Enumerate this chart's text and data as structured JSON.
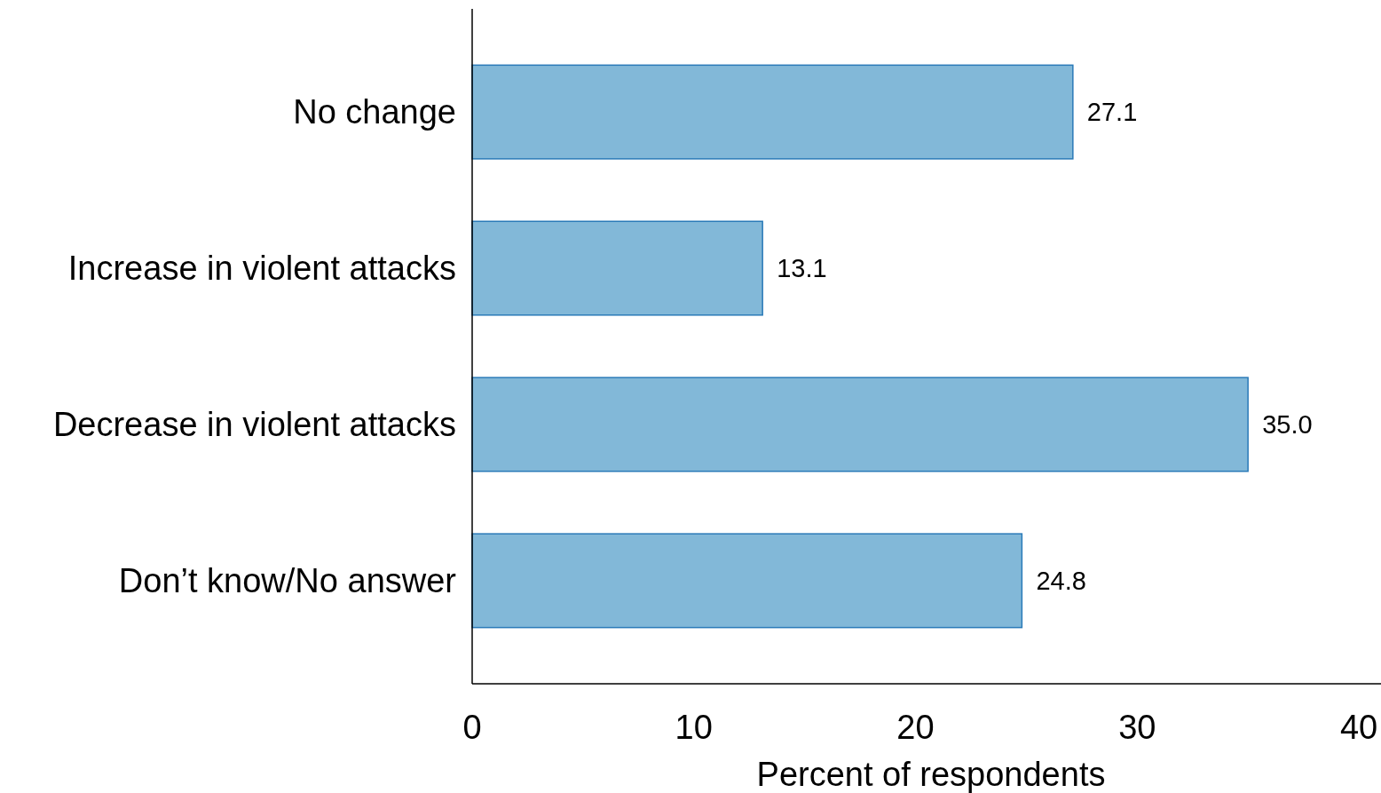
{
  "chart_data": {
    "type": "bar",
    "orientation": "horizontal",
    "xlabel": "Percent of respondents",
    "categories": [
      "No change",
      "Increase in violent attacks",
      "Decrease in violent attacks",
      "Don’t know/No answer"
    ],
    "values": [
      27.1,
      13.1,
      35.0,
      24.8
    ],
    "value_labels": [
      "27.1",
      "13.1",
      "35.0",
      "24.8"
    ],
    "color": "#82b8d8",
    "xlim": [
      0,
      41
    ],
    "xticks": [
      0,
      10,
      20,
      30,
      40
    ]
  }
}
